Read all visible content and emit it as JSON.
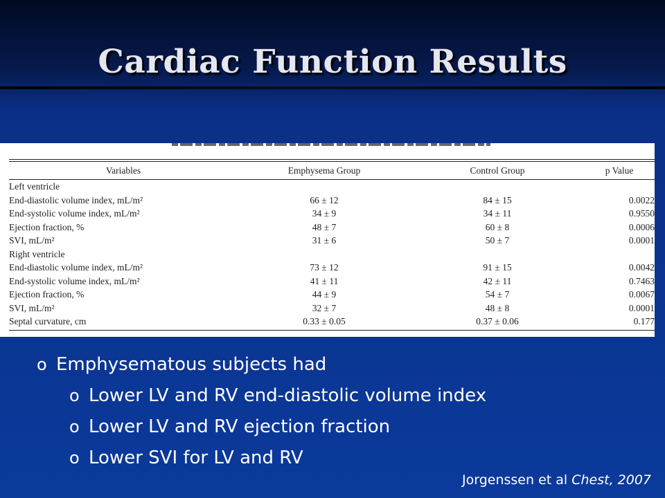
{
  "slide": {
    "title": "Cardiac Function Results"
  },
  "table": {
    "headers": [
      "Variables",
      "Emphysema Group",
      "Control Group",
      "p Value"
    ],
    "rows": [
      {
        "label": "Left ventricle",
        "group": true,
        "emphysema": "",
        "control": "",
        "p": ""
      },
      {
        "label": "End-diastolic volume index, mL/m²",
        "group": false,
        "emphysema": "66 ± 12",
        "control": "84 ± 15",
        "p": "0.0022"
      },
      {
        "label": "End-systolic volume index, mL/m²",
        "group": false,
        "emphysema": "34 ± 9",
        "control": "34 ± 11",
        "p": "0.9550"
      },
      {
        "label": "Ejection fraction, %",
        "group": false,
        "emphysema": "48 ± 7",
        "control": "60 ± 8",
        "p": "0.0006"
      },
      {
        "label": "SVI, mL/m²",
        "group": false,
        "emphysema": "31 ± 6",
        "control": "50 ± 7",
        "p": "0.0001"
      },
      {
        "label": "Right ventricle",
        "group": true,
        "emphysema": "",
        "control": "",
        "p": ""
      },
      {
        "label": "End-diastolic volume index, mL/m²",
        "group": false,
        "emphysema": "73 ± 12",
        "control": "91 ± 15",
        "p": "0.0042"
      },
      {
        "label": "End-systolic volume index, mL/m²",
        "group": false,
        "emphysema": "41 ± 11",
        "control": "42 ± 11",
        "p": "0.7463"
      },
      {
        "label": "Ejection fraction, %",
        "group": false,
        "emphysema": "44 ± 9",
        "control": "54 ± 7",
        "p": "0.0067"
      },
      {
        "label": "SVI, mL/m²",
        "group": false,
        "emphysema": "32 ± 7",
        "control": "48 ± 8",
        "p": "0.0001"
      },
      {
        "label": "Septal curvature, cm",
        "group": true,
        "emphysema": "0.33 ± 0.05",
        "control": "0.37 ± 0.06",
        "p": "0.177"
      }
    ]
  },
  "bullets": [
    {
      "text": "Emphysematous subjects had",
      "level": 1
    },
    {
      "text": "Lower LV and RV end-diastolic volume index",
      "level": 2
    },
    {
      "text": "Lower LV and RV ejection fraction",
      "level": 2
    },
    {
      "text": "Lower SVI for LV and RV",
      "level": 2
    }
  ],
  "bullet_marker": "o",
  "citation": {
    "authors": "Jorgenssen et al",
    "journal": "Chest, 2007"
  }
}
